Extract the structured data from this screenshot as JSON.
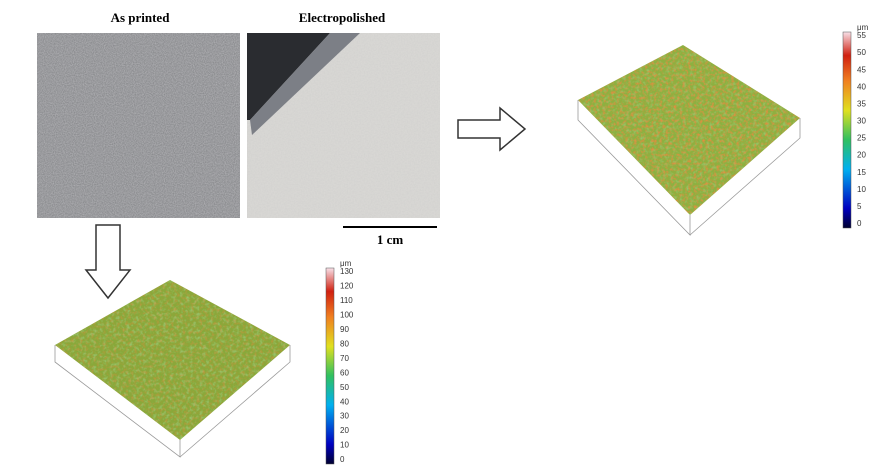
{
  "photos": {
    "as_printed": "As printed",
    "electropolished": "Electropolished"
  },
  "scale_bar": "1 cm",
  "colorbar_top": {
    "unit": "μm",
    "ticks": [
      55,
      50,
      45,
      40,
      35,
      30,
      25,
      20,
      15,
      10,
      5,
      0
    ]
  },
  "colorbar_bottom": {
    "unit": "μm",
    "ticks": [
      130,
      120,
      110,
      100,
      90,
      80,
      70,
      60,
      50,
      40,
      30,
      20,
      10,
      0
    ]
  }
}
